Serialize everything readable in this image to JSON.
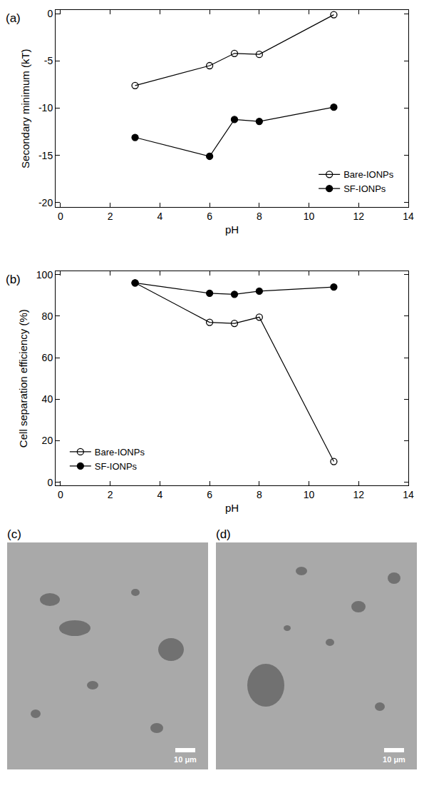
{
  "chart_data": [
    {
      "type": "line",
      "panel": "(a)",
      "x_label": "pH",
      "y_label": "Secondary minimum (kT)",
      "xlim": [
        -0.2,
        14
      ],
      "xticks": [
        0,
        2,
        4,
        6,
        8,
        10,
        12,
        14
      ],
      "ylim": [
        -20.5,
        0.4
      ],
      "yticks": [
        -20,
        -15,
        -10,
        -5,
        0
      ],
      "legend": "lower right",
      "series": [
        {
          "name": "Bare-IONPs",
          "color": "#000000",
          "marker": "open-circle",
          "x": [
            3,
            6,
            7,
            8,
            11
          ],
          "values": [
            -7.6,
            -5.5,
            -4.2,
            -4.3,
            -0.1
          ]
        },
        {
          "name": "SF-IONPs",
          "color": "#000000",
          "marker": "circle",
          "x": [
            3,
            6,
            7,
            8,
            11
          ],
          "values": [
            -13.1,
            -15.1,
            -11.2,
            -11.4,
            -9.9
          ]
        }
      ]
    },
    {
      "type": "line",
      "panel": "(b)",
      "x_label": "pH",
      "y_label": "Cell separation efficiency (%)",
      "xlim": [
        -0.2,
        14
      ],
      "xticks": [
        0,
        2,
        4,
        6,
        8,
        10,
        12,
        14
      ],
      "ylim": [
        -1.5,
        101.5
      ],
      "yticks": [
        0,
        20,
        40,
        60,
        80,
        100
      ],
      "legend": "lower left",
      "series": [
        {
          "name": "Bare-IONPs",
          "color": "#000000",
          "marker": "open-circle",
          "x": [
            3,
            6,
            7,
            8,
            11
          ],
          "values": [
            96,
            77,
            76.5,
            79.5,
            10
          ]
        },
        {
          "name": "SF-IONPs",
          "color": "#000000",
          "marker": "circle",
          "x": [
            3,
            6,
            7,
            8,
            11
          ],
          "values": [
            96,
            91,
            90.5,
            92,
            94
          ]
        }
      ]
    }
  ],
  "images": [
    {
      "panel": "(c)",
      "scale_bar": "10 μm"
    },
    {
      "panel": "(d)",
      "scale_bar": "10 μm"
    }
  ]
}
